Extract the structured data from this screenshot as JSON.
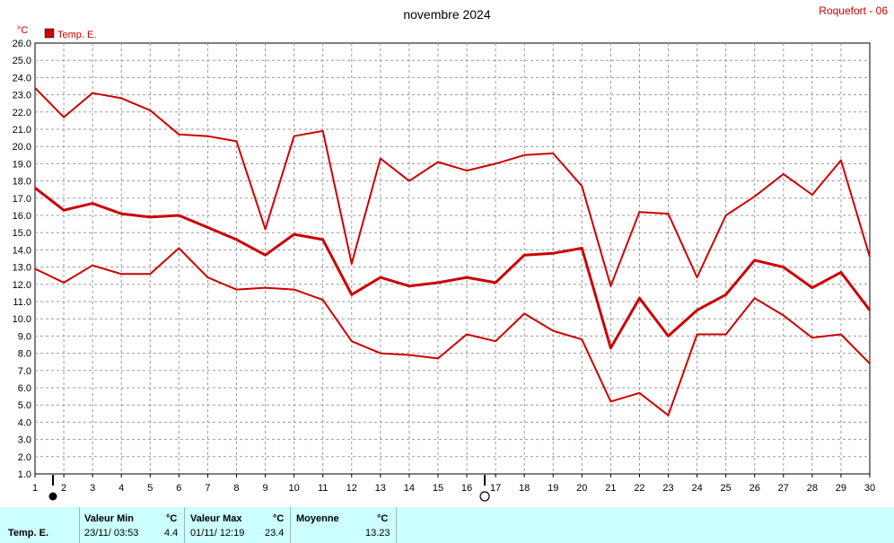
{
  "header": {
    "title": "novembre 2024",
    "station": "Roquefort - 06",
    "unit_label": "°C",
    "legend_label": "Temp. E.",
    "legend_color": "#cc0000"
  },
  "chart_data": {
    "type": "line",
    "title": "novembre 2024",
    "ylabel": "°C",
    "ylim": [
      1.0,
      26.0
    ],
    "ytick_step": 1.0,
    "xlim": [
      1,
      30
    ],
    "grid": true,
    "legend": "top-left",
    "x": [
      1,
      2,
      3,
      4,
      5,
      6,
      7,
      8,
      9,
      10,
      11,
      12,
      13,
      14,
      15,
      16,
      17,
      18,
      19,
      20,
      21,
      22,
      23,
      24,
      25,
      26,
      27,
      28,
      29,
      30
    ],
    "series": [
      {
        "name": "Temp. E.",
        "role": "max",
        "color": "#cc0000",
        "values": [
          23.4,
          21.7,
          23.1,
          22.8,
          22.1,
          20.7,
          20.6,
          20.3,
          15.2,
          20.6,
          20.9,
          13.2,
          19.3,
          18.0,
          19.1,
          18.6,
          19.0,
          19.5,
          19.6,
          17.7,
          11.9,
          16.2,
          16.1,
          12.4,
          16.0,
          17.1,
          18.4,
          17.2,
          19.2,
          13.6
        ]
      },
      {
        "name": "Temp. E.",
        "role": "mean",
        "color": "#cc0000",
        "values": [
          17.6,
          16.3,
          16.7,
          16.1,
          15.9,
          16.0,
          15.3,
          14.6,
          13.7,
          14.9,
          14.6,
          11.4,
          12.4,
          11.9,
          12.1,
          12.4,
          12.1,
          13.7,
          13.8,
          14.1,
          8.3,
          11.2,
          9.0,
          10.5,
          11.4,
          13.4,
          13.0,
          11.8,
          12.7,
          10.5
        ]
      },
      {
        "name": "Temp. E.",
        "role": "min",
        "color": "#cc0000",
        "values": [
          12.9,
          12.1,
          13.1,
          12.6,
          12.6,
          14.1,
          12.4,
          11.7,
          11.8,
          11.7,
          11.1,
          8.7,
          8.0,
          7.9,
          7.7,
          9.1,
          8.7,
          10.3,
          9.3,
          8.8,
          5.2,
          5.7,
          4.4,
          9.1,
          9.1,
          11.2,
          10.2,
          8.9,
          9.1,
          7.4
        ]
      }
    ],
    "moon_markers": [
      {
        "day": 1,
        "phase": "new"
      },
      {
        "day": 16,
        "phase": "full"
      }
    ]
  },
  "stats": {
    "row_label": "Temp. E.",
    "min_header": "Valeur Min",
    "min_unit": "°C",
    "min_when": "23/11/  03:53",
    "min_value": "4.4",
    "max_header": "Valeur Max",
    "max_unit": "°C",
    "max_when": "01/11/  12:19",
    "max_value": "23.4",
    "mean_header": "Moyenne",
    "mean_unit": "°C",
    "mean_value": "13.23"
  }
}
